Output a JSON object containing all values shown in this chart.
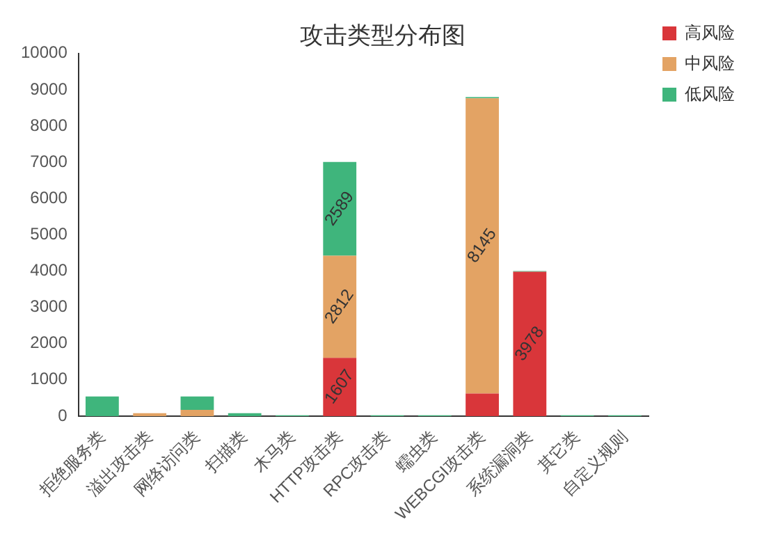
{
  "chart_data": {
    "type": "bar",
    "title": "攻击类型分布图",
    "categories": [
      "拒绝服务类",
      "溢出攻击类",
      "网络访问类",
      "扫描类",
      "木马类",
      "HTTP攻击类",
      "RPC攻击类",
      "蠕虫类",
      "WEBCGI攻击类",
      "系统漏洞类",
      "其它类",
      "自定义规则"
    ],
    "series": [
      {
        "name": "高风险",
        "color": "#d9363a",
        "values": [
          0,
          0,
          0,
          0,
          0,
          1607,
          0,
          0,
          620,
          3978,
          0,
          0
        ],
        "value_labels": [
          null,
          null,
          null,
          null,
          null,
          "1607",
          null,
          null,
          null,
          "3978",
          null,
          null
        ]
      },
      {
        "name": "中风险",
        "color": "#e3a364",
        "values": [
          0,
          80,
          170,
          0,
          0,
          2812,
          0,
          0,
          8145,
          0,
          0,
          0
        ],
        "value_labels": [
          null,
          null,
          null,
          null,
          null,
          "2812",
          null,
          null,
          "8145",
          null,
          null,
          null
        ]
      },
      {
        "name": "低风险",
        "color": "#3fb57c",
        "values": [
          540,
          null,
          370,
          80,
          20,
          2589,
          20,
          20,
          30,
          20,
          20,
          20
        ],
        "value_labels": [
          null,
          null,
          null,
          null,
          null,
          "2589",
          null,
          null,
          null,
          null,
          null,
          null
        ]
      }
    ],
    "stacked": true,
    "ylim": [
      0,
      10000
    ],
    "yticks": [
      0,
      1000,
      2000,
      3000,
      4000,
      5000,
      6000,
      7000,
      8000,
      9000,
      10000
    ],
    "grid": false,
    "legend": "top right"
  }
}
